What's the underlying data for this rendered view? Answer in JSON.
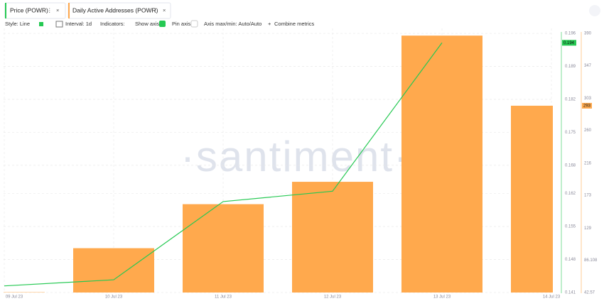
{
  "toolbar": {
    "style": "Style: Line",
    "interval": "Interval: 1d",
    "indicators": "Indicators:",
    "show_axis": "Show axis",
    "pin_axis": "Pin axis",
    "axis_range": "Axis max/min: Auto/Auto",
    "combine": "Combine metrics"
  },
  "chart_data": {
    "type": "bar-line",
    "watermark": "·santiment·",
    "categories": [
      "09 Jul 23",
      "10 Jul 23",
      "11 Jul 23",
      "12 Jul 23",
      "13 Jul 23",
      "14 Jul 23"
    ],
    "series": [
      {
        "name": "Price (POWR)",
        "color": "#26c953",
        "type": "line",
        "values": [
          0.1424,
          0.1437,
          0.1603,
          0.1625,
          0.194,
          null
        ]
      },
      {
        "name": "Daily Active Addresses (POWR)",
        "color": "#ffa94d",
        "type": "bar",
        "axis": "y2",
        "values": [
          43,
          102,
          161,
          191,
          387,
          293
        ]
      }
    ],
    "ylim": [
      0.141,
      0.196
    ],
    "yticks": [
      0.141,
      0.148,
      0.155,
      0.162,
      0.168,
      0.175,
      0.182,
      0.189,
      0.196
    ],
    "y2lim": [
      42.57,
      390
    ],
    "y2ticks": [
      42.57,
      86.108,
      129,
      173,
      216,
      260,
      303,
      347,
      390
    ],
    "grid": true
  }
}
